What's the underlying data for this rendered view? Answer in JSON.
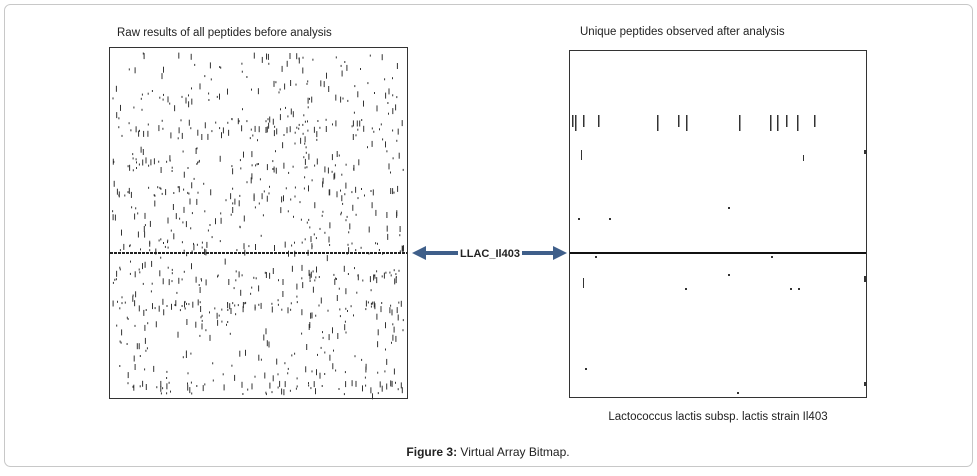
{
  "figure": {
    "left_panel": {
      "title": "Raw results of all peptides before analysis"
    },
    "right_panel": {
      "title": "Unique peptides observed after analysis",
      "subtitle": "Lactococcus lactis subsp. lactis strain Il403"
    },
    "arrow_label": "LLAC_Il403",
    "caption": {
      "label": "Figure 3:",
      "text": "Virtual Array Bitmap."
    }
  }
}
